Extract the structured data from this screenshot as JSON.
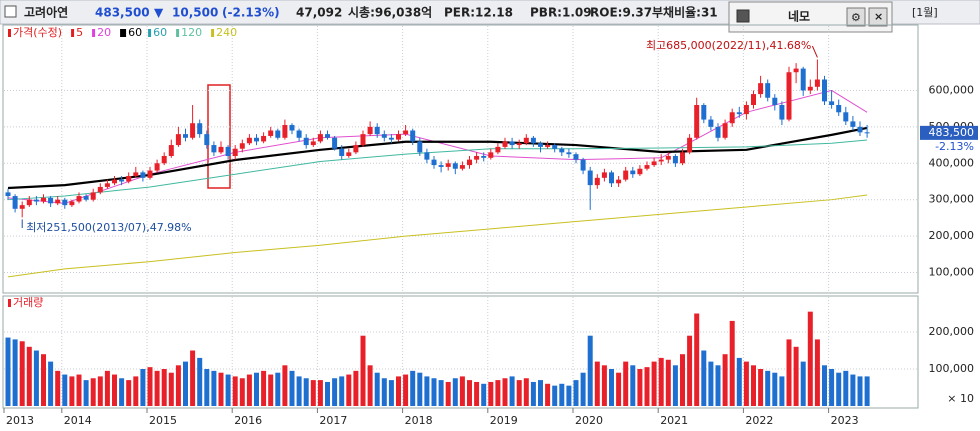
{
  "header": {
    "name": "고려아연",
    "price": "483,500",
    "arrow": "▼",
    "change": "10,500",
    "change_pct": "(-2.13%)",
    "volume": "47,092",
    "cap": "시총:96,038억",
    "per": "PER:12.18",
    "pbr": "PBR:1.09",
    "roe": "ROE:9.37",
    "debt": "부채비율:31",
    "window": "네모",
    "period": "[1월]"
  },
  "chart_data": {
    "type": "candlestick",
    "legend": [
      {
        "name": "가격(수정)",
        "color": "#e02020"
      },
      {
        "name": "5",
        "color": "#e02020"
      },
      {
        "name": "20",
        "color": "#e040e0"
      },
      {
        "name": "60",
        "color": "#000000"
      },
      {
        "name": "60",
        "color": "#2a9fb0"
      },
      {
        "name": "120",
        "color": "#5fc0a0"
      },
      {
        "name": "240",
        "color": "#c8c020"
      }
    ],
    "x": [
      "2013/05",
      "2013/06",
      "2013/07",
      "2013/08",
      "2013/09",
      "2013/10",
      "2013/11",
      "2013/12",
      "2014/01",
      "2014/02",
      "2014/03",
      "2014/04",
      "2014/05",
      "2014/06",
      "2014/07",
      "2014/08",
      "2014/09",
      "2014/10",
      "2014/11",
      "2014/12",
      "2015/01",
      "2015/02",
      "2015/03",
      "2015/04",
      "2015/05",
      "2015/06",
      "2015/07",
      "2015/08",
      "2015/09",
      "2015/10",
      "2015/11",
      "2015/12",
      "2016/01",
      "2016/02",
      "2016/03",
      "2016/04",
      "2016/05",
      "2016/06",
      "2016/07",
      "2016/08",
      "2016/09",
      "2016/10",
      "2016/11",
      "2016/12",
      "2017/01",
      "2017/02",
      "2017/03",
      "2017/04",
      "2017/05",
      "2017/06",
      "2017/07",
      "2017/08",
      "2017/09",
      "2017/10",
      "2017/11",
      "2017/12",
      "2018/01",
      "2018/02",
      "2018/03",
      "2018/04",
      "2018/05",
      "2018/06",
      "2018/07",
      "2018/08",
      "2018/09",
      "2018/10",
      "2018/11",
      "2018/12",
      "2019/01",
      "2019/02",
      "2019/03",
      "2019/04",
      "2019/05",
      "2019/06",
      "2019/07",
      "2019/08",
      "2019/09",
      "2019/10",
      "2019/11",
      "2019/12",
      "2020/01",
      "2020/02",
      "2020/03",
      "2020/04",
      "2020/05",
      "2020/06",
      "2020/07",
      "2020/08",
      "2020/09",
      "2020/10",
      "2020/11",
      "2020/12",
      "2021/01",
      "2021/02",
      "2021/03",
      "2021/04",
      "2021/05",
      "2021/06",
      "2021/07",
      "2021/08",
      "2021/09",
      "2021/10",
      "2021/11",
      "2021/12",
      "2022/01",
      "2022/02",
      "2022/03",
      "2022/04",
      "2022/05",
      "2022/06",
      "2022/07",
      "2022/08",
      "2022/09",
      "2022/10",
      "2022/11",
      "2022/12",
      "2023/01",
      "2023/02",
      "2023/03",
      "2023/04",
      "2023/05",
      "2023/06"
    ],
    "ohlc": [
      [
        320000,
        330000,
        300000,
        310000
      ],
      [
        310000,
        315000,
        265000,
        275000
      ],
      [
        275000,
        295000,
        251500,
        285000
      ],
      [
        285000,
        310000,
        280000,
        300000
      ],
      [
        300000,
        310000,
        285000,
        295000
      ],
      [
        295000,
        315000,
        290000,
        305000
      ],
      [
        305000,
        310000,
        280000,
        290000
      ],
      [
        290000,
        310000,
        285000,
        300000
      ],
      [
        300000,
        305000,
        275000,
        285000
      ],
      [
        285000,
        300000,
        280000,
        295000
      ],
      [
        295000,
        320000,
        290000,
        310000
      ],
      [
        310000,
        315000,
        295000,
        300000
      ],
      [
        300000,
        330000,
        295000,
        320000
      ],
      [
        320000,
        345000,
        315000,
        335000
      ],
      [
        335000,
        355000,
        330000,
        345000
      ],
      [
        345000,
        365000,
        340000,
        355000
      ],
      [
        355000,
        365000,
        340000,
        350000
      ],
      [
        350000,
        375000,
        345000,
        365000
      ],
      [
        365000,
        390000,
        360000,
        375000
      ],
      [
        375000,
        380000,
        350000,
        360000
      ],
      [
        360000,
        390000,
        355000,
        380000
      ],
      [
        380000,
        410000,
        375000,
        400000
      ],
      [
        400000,
        430000,
        395000,
        420000
      ],
      [
        420000,
        465000,
        415000,
        450000
      ],
      [
        450000,
        500000,
        445000,
        480000
      ],
      [
        480000,
        495000,
        460000,
        470000
      ],
      [
        470000,
        560000,
        465000,
        510000
      ],
      [
        510000,
        520000,
        470000,
        480000
      ],
      [
        480000,
        490000,
        440000,
        450000
      ],
      [
        450000,
        460000,
        420000,
        430000
      ],
      [
        430000,
        460000,
        425000,
        445000
      ],
      [
        445000,
        450000,
        410000,
        420000
      ],
      [
        420000,
        450000,
        410000,
        440000
      ],
      [
        440000,
        465000,
        430000,
        455000
      ],
      [
        455000,
        480000,
        450000,
        470000
      ],
      [
        470000,
        480000,
        450000,
        460000
      ],
      [
        460000,
        485000,
        455000,
        475000
      ],
      [
        475000,
        500000,
        470000,
        490000
      ],
      [
        490000,
        495000,
        465000,
        470000
      ],
      [
        470000,
        520000,
        465000,
        505000
      ],
      [
        505000,
        510000,
        480000,
        490000
      ],
      [
        490000,
        495000,
        460000,
        470000
      ],
      [
        470000,
        480000,
        440000,
        450000
      ],
      [
        450000,
        470000,
        445000,
        460000
      ],
      [
        460000,
        490000,
        455000,
        480000
      ],
      [
        480000,
        490000,
        465000,
        470000
      ],
      [
        470000,
        475000,
        435000,
        440000
      ],
      [
        440000,
        450000,
        410000,
        420000
      ],
      [
        420000,
        440000,
        415000,
        430000
      ],
      [
        430000,
        460000,
        425000,
        450000
      ],
      [
        450000,
        490000,
        445000,
        480000
      ],
      [
        480000,
        515000,
        475000,
        500000
      ],
      [
        500000,
        510000,
        470000,
        480000
      ],
      [
        480000,
        490000,
        460000,
        470000
      ],
      [
        470000,
        480000,
        455000,
        465000
      ],
      [
        465000,
        490000,
        460000,
        480000
      ],
      [
        480000,
        505000,
        475000,
        490000
      ],
      [
        490000,
        495000,
        450000,
        460000
      ],
      [
        460000,
        470000,
        420000,
        430000
      ],
      [
        430000,
        440000,
        400000,
        410000
      ],
      [
        410000,
        420000,
        385000,
        395000
      ],
      [
        395000,
        405000,
        375000,
        390000
      ],
      [
        390000,
        410000,
        380000,
        400000
      ],
      [
        400000,
        405000,
        370000,
        385000
      ],
      [
        385000,
        405000,
        380000,
        395000
      ],
      [
        395000,
        420000,
        385000,
        410000
      ],
      [
        410000,
        430000,
        400000,
        420000
      ],
      [
        420000,
        430000,
        405000,
        415000
      ],
      [
        415000,
        440000,
        410000,
        430000
      ],
      [
        430000,
        455000,
        425000,
        445000
      ],
      [
        445000,
        470000,
        440000,
        460000
      ],
      [
        460000,
        470000,
        440000,
        450000
      ],
      [
        450000,
        465000,
        440000,
        455000
      ],
      [
        455000,
        480000,
        450000,
        470000
      ],
      [
        470000,
        475000,
        445000,
        455000
      ],
      [
        455000,
        460000,
        430000,
        445000
      ],
      [
        445000,
        460000,
        440000,
        450000
      ],
      [
        450000,
        455000,
        430000,
        440000
      ],
      [
        440000,
        445000,
        420000,
        430000
      ],
      [
        430000,
        440000,
        415000,
        425000
      ],
      [
        425000,
        430000,
        400000,
        410000
      ],
      [
        410000,
        415000,
        370000,
        380000
      ],
      [
        380000,
        390000,
        272000,
        340000
      ],
      [
        340000,
        370000,
        330000,
        360000
      ],
      [
        360000,
        385000,
        350000,
        375000
      ],
      [
        375000,
        380000,
        335000,
        345000
      ],
      [
        345000,
        365000,
        335000,
        355000
      ],
      [
        355000,
        390000,
        350000,
        380000
      ],
      [
        380000,
        390000,
        360000,
        370000
      ],
      [
        370000,
        395000,
        365000,
        385000
      ],
      [
        385000,
        405000,
        380000,
        395000
      ],
      [
        395000,
        415000,
        390000,
        405000
      ],
      [
        405000,
        425000,
        395000,
        410000
      ],
      [
        410000,
        430000,
        400000,
        420000
      ],
      [
        420000,
        425000,
        390000,
        400000
      ],
      [
        400000,
        440000,
        395000,
        430000
      ],
      [
        430000,
        480000,
        425000,
        470000
      ],
      [
        470000,
        580000,
        465000,
        560000
      ],
      [
        560000,
        565000,
        510000,
        520000
      ],
      [
        520000,
        530000,
        490000,
        500000
      ],
      [
        500000,
        510000,
        460000,
        470000
      ],
      [
        470000,
        520000,
        465000,
        510000
      ],
      [
        510000,
        550000,
        500000,
        540000
      ],
      [
        540000,
        555000,
        525000,
        535000
      ],
      [
        535000,
        570000,
        520000,
        560000
      ],
      [
        560000,
        600000,
        550000,
        590000
      ],
      [
        590000,
        640000,
        580000,
        620000
      ],
      [
        620000,
        630000,
        570000,
        580000
      ],
      [
        580000,
        590000,
        545000,
        560000
      ],
      [
        560000,
        570000,
        505000,
        520000
      ],
      [
        520000,
        665000,
        515000,
        650000
      ],
      [
        650000,
        675000,
        620000,
        660000
      ],
      [
        660000,
        665000,
        585000,
        600000
      ],
      [
        600000,
        630000,
        590000,
        610000
      ],
      [
        610000,
        685000,
        600000,
        630000
      ],
      [
        630000,
        640000,
        560000,
        570000
      ],
      [
        570000,
        600000,
        550000,
        560000
      ],
      [
        560000,
        575000,
        530000,
        540000
      ],
      [
        540000,
        555000,
        505000,
        515000
      ],
      [
        515000,
        530000,
        490000,
        500000
      ],
      [
        500000,
        515000,
        475000,
        485000
      ],
      [
        485000,
        505000,
        470000,
        483500
      ]
    ],
    "up_color": "#e8202a",
    "down_color": "#1f6fd0",
    "ma": [
      {
        "name": "20",
        "color": "#e050d0",
        "x": [
          "2013/05",
          "2014/01",
          "2015/01",
          "2016/01",
          "2017/01",
          "2018/01",
          "2019/01",
          "2020/01",
          "2021/01",
          "2022/01",
          "2023/01",
          "2023/06"
        ],
        "values": [
          305000,
          290000,
          370000,
          430000,
          470000,
          480000,
          420000,
          410000,
          415000,
          540000,
          600000,
          540000
        ]
      },
      {
        "name": "60",
        "color": "#000000",
        "width": 2.2,
        "x": [
          "2013/05",
          "2014/01",
          "2015/01",
          "2016/01",
          "2017/01",
          "2018/01",
          "2019/01",
          "2020/01",
          "2021/01",
          "2022/01",
          "2023/01",
          "2023/06"
        ],
        "values": [
          332000,
          340000,
          368000,
          409000,
          437000,
          459000,
          459000,
          450000,
          431000,
          437000,
          478000,
          497000
        ]
      },
      {
        "name": "120",
        "color": "#40b8a0",
        "x": [
          "2013/05",
          "2014/01",
          "2015/01",
          "2016/01",
          "2017/01",
          "2018/01",
          "2019/01",
          "2020/01",
          "2021/01",
          "2022/01",
          "2023/01",
          "2023/06"
        ],
        "values": [
          300000,
          310000,
          335000,
          370000,
          405000,
          425000,
          440000,
          440000,
          442000,
          445000,
          455000,
          464000
        ]
      },
      {
        "name": "240",
        "color": "#c8c020",
        "x": [
          "2013/05",
          "2014/01",
          "2015/01",
          "2016/01",
          "2017/01",
          "2018/01",
          "2019/01",
          "2020/01",
          "2021/01",
          "2022/01",
          "2023/01",
          "2023/06"
        ],
        "values": [
          88000,
          110000,
          130000,
          155000,
          175000,
          200000,
          220000,
          240000,
          260000,
          280000,
          300000,
          313000
        ]
      }
    ],
    "ylim": [
      52000,
      744000
    ],
    "yticks": [
      {
        "value": 100000,
        "label": "100,000"
      },
      {
        "value": 200000,
        "label": "200,000"
      },
      {
        "value": 300000,
        "label": "300,000"
      },
      {
        "value": 400000,
        "label": "400,000"
      },
      {
        "value": 500000,
        "label": "500,000"
      },
      {
        "value": 600000,
        "label": "600,000"
      }
    ],
    "years": [
      "2013",
      "2014",
      "2015",
      "2016",
      "2017",
      "2018",
      "2019",
      "2020",
      "2021",
      "2022",
      "2023"
    ],
    "high_annotation": {
      "x": "2022/11",
      "value": 685000,
      "label": "최고685,000(2022/11),41.68%"
    },
    "low_annotation": {
      "x": "2013/07",
      "value": 251500,
      "label": "최저251,500(2013/07),47.98%"
    },
    "last_label": "483,500",
    "last_change": "-2.13%",
    "volume": {
      "title": "거래량",
      "values": [
        185000,
        180000,
        175000,
        160000,
        150000,
        140000,
        120000,
        95000,
        85000,
        80000,
        85000,
        70000,
        75000,
        80000,
        95000,
        85000,
        75000,
        70000,
        80000,
        100000,
        105000,
        95000,
        100000,
        90000,
        110000,
        120000,
        150000,
        130000,
        100000,
        95000,
        90000,
        85000,
        80000,
        75000,
        85000,
        90000,
        95000,
        85000,
        90000,
        110000,
        95000,
        80000,
        75000,
        70000,
        70000,
        65000,
        75000,
        80000,
        85000,
        95000,
        190000,
        110000,
        90000,
        75000,
        70000,
        80000,
        85000,
        95000,
        90000,
        80000,
        75000,
        70000,
        65000,
        75000,
        80000,
        70000,
        65000,
        60000,
        65000,
        70000,
        75000,
        80000,
        70000,
        75000,
        65000,
        70000,
        60000,
        55000,
        60000,
        55000,
        70000,
        90000,
        190000,
        120000,
        110000,
        100000,
        90000,
        120000,
        110000,
        100000,
        105000,
        120000,
        130000,
        125000,
        110000,
        140000,
        190000,
        250000,
        150000,
        120000,
        110000,
        140000,
        230000,
        130000,
        120000,
        110000,
        100000,
        95000,
        90000,
        80000,
        180000,
        160000,
        120000,
        255000,
        180000,
        110000,
        100000,
        90000,
        95000,
        85000,
        80000,
        80000
      ],
      "ylim": [
        0,
        273000
      ],
      "yticks": [
        {
          "value": 100000,
          "label": "100,000"
        },
        {
          "value": 200000,
          "label": "200,000"
        }
      ],
      "unit": "× 10"
    }
  }
}
